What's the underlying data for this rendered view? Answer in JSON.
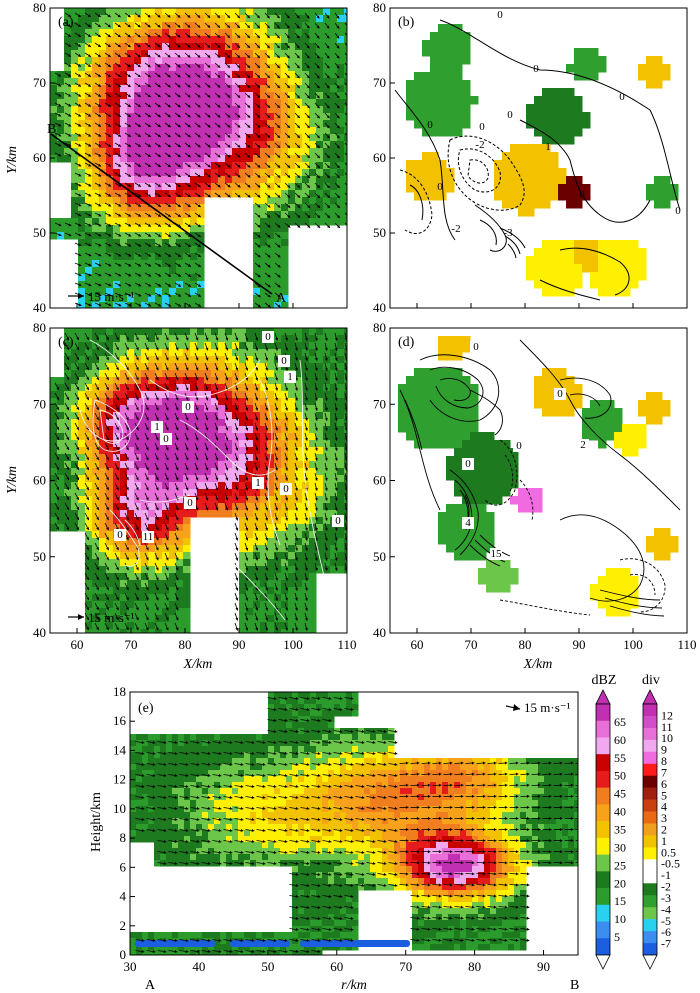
{
  "colors": {
    "dbz": [
      "#1c5ee0",
      "#3b8ef0",
      "#2ad0f0",
      "#2b9c2b",
      "#1e7a1e",
      "#6bc64a",
      "#ffef00",
      "#f2c200",
      "#f7a21a",
      "#f07d1e",
      "#e61c1c",
      "#c80000",
      "#f2a8ee",
      "#e86fd8",
      "#c030b0"
    ],
    "div": [
      "#1c5ee0",
      "#3b8ef0",
      "#2ad0f0",
      "#6bc64a",
      "#2fa02f",
      "#1e7a1e",
      "#ffffff",
      "#ffffff",
      "#ffef00",
      "#f2c200",
      "#f0a020",
      "#e86a14",
      "#c84010",
      "#a02010",
      "#6a0000",
      "#ff1a1a",
      "#f06ae0",
      "#f2a8ee",
      "#e86fd8",
      "#d04cc8",
      "#c030b0"
    ]
  },
  "panels": {
    "a": {
      "label": "(a)",
      "ylabel": "Y/km",
      "ref": "15 m·s⁻¹",
      "point_b": "B",
      "point_a": "A"
    },
    "b": {
      "label": "(b)"
    },
    "c": {
      "label": "(c)",
      "ylabel": "Y/km",
      "xlabel": "X/km",
      "ref": "15 m·s⁻¹"
    },
    "d": {
      "label": "(d)",
      "xlabel": "X/km"
    },
    "e": {
      "label": "(e)",
      "ylabel": "Height/km",
      "xlabel": "r/km",
      "ref": "15 m·s⁻¹",
      "end_a": "A",
      "end_b": "B"
    }
  },
  "colorbars": {
    "dbz": {
      "title": "dBZ",
      "labels": [
        "65",
        "60",
        "55",
        "50",
        "45",
        "40",
        "35",
        "30",
        "25",
        "20",
        "15",
        "10",
        "5"
      ]
    },
    "div": {
      "title": "div",
      "labels": [
        "12",
        "11",
        "10",
        "9",
        "8",
        "7",
        "6",
        "5",
        "4",
        "3",
        "2",
        "1",
        "0.5",
        "-0.5",
        "-1",
        "-2",
        "-3",
        "-4",
        "-5",
        "-6",
        "-7"
      ]
    }
  },
  "contour_labels": {
    "b": [
      "0",
      "0",
      "0",
      "0",
      "-2",
      "1",
      "0",
      "-2",
      "0",
      "0",
      "0",
      "0",
      "-3"
    ],
    "c": [
      "0",
      "0",
      "1",
      "0",
      "1",
      "0",
      "1",
      "0",
      "0",
      "0",
      "0",
      "11"
    ],
    "d": [
      "0",
      "0",
      "2",
      "0",
      "0",
      "4",
      "15"
    ]
  },
  "chart_data": [
    {
      "type": "heatmap",
      "panel": "(a)",
      "field": "reflectivity",
      "units": "dBZ",
      "x_ticks": [
        "60",
        "70",
        "80",
        "90",
        "100",
        "110"
      ],
      "y_ticks": [
        "40",
        "50",
        "60",
        "70",
        "80"
      ],
      "xlim": [
        55,
        110
      ],
      "ylim": [
        40,
        80
      ],
      "ylabel": "Y/km",
      "cross_section": {
        "from": "B",
        "to": "A"
      }
    },
    {
      "type": "heatmap",
      "panel": "(b)",
      "field": "divergence",
      "units": "div",
      "x_ticks": [
        "60",
        "70",
        "80",
        "90",
        "100",
        "110"
      ],
      "y_ticks": [
        "40",
        "50",
        "60",
        "70",
        "80"
      ],
      "xlim": [
        55,
        110
      ],
      "ylim": [
        40,
        80
      ]
    },
    {
      "type": "heatmap",
      "panel": "(c)",
      "field": "reflectivity",
      "units": "dBZ",
      "x_ticks": [
        "60",
        "70",
        "80",
        "90",
        "100",
        "110"
      ],
      "y_ticks": [
        "40",
        "50",
        "60",
        "70",
        "80"
      ],
      "xlim": [
        55,
        110
      ],
      "ylim": [
        40,
        80
      ],
      "xlabel": "X/km",
      "ylabel": "Y/km"
    },
    {
      "type": "heatmap",
      "panel": "(d)",
      "field": "divergence",
      "units": "div",
      "x_ticks": [
        "60",
        "70",
        "80",
        "90",
        "100",
        "110"
      ],
      "y_ticks": [
        "40",
        "50",
        "60",
        "70",
        "80"
      ],
      "xlim": [
        55,
        110
      ],
      "ylim": [
        40,
        80
      ],
      "xlabel": "X/km"
    },
    {
      "type": "heatmap",
      "panel": "(e)",
      "field": "reflectivity cross-section",
      "units": "dBZ",
      "x_ticks": [
        "30",
        "40",
        "50",
        "60",
        "70",
        "80",
        "90"
      ],
      "y_ticks": [
        "0",
        "2",
        "4",
        "6",
        "8",
        "10",
        "12",
        "14",
        "16",
        "18"
      ],
      "xlim": [
        30,
        95
      ],
      "ylim": [
        0,
        18
      ],
      "xlabel": "r/km",
      "ylabel": "Height/km"
    }
  ]
}
